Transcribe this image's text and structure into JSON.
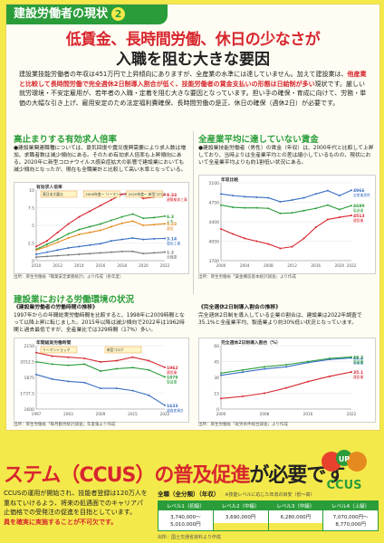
{
  "title_tag": {
    "text": "建設労働者の現状",
    "num": "2"
  },
  "headline": {
    "line1": "低賃金、長時間労働、休日の少なさが",
    "line2": "入職を阻む大きな要因"
  },
  "intro": {
    "p1": "建設業技能労働者の年収は451万円で上昇傾向にありますが、全産業の水準には達していません。加えて建設業は、",
    "p1_red": "他産業と比較して長時間労働で完全週休2日制導入割合が低く、技能労働者の賃金支払いの形態は日給制が多い",
    "p2": "現状です。厳しい就労環境・不安定雇用が、若年者の入職・定着を阻む大きな要因となっています。担い手の確保・育成に向けて、労務・単価の大幅な引き上げ、雇用安定のため法定福利費確保、長時間労働の是正、休日の確保（週休2日）が必要です。"
  },
  "panel1": {
    "heading": "高止まりする有効求人倍率",
    "text": "●建設業関連職種については、景気回復や震災復興需要により求人数は増加、求職者数は減少傾向にある。そのため有効求人倍率も上昇傾向にある。2020年に新型コロナウイルス感染症拡大の影響で建設業においても減少傾向となったが、現在も全職業計と比較して高い水準となっている。",
    "source": "出所：厚生労働省「職業安定業務統計」より作成（各年度）"
  },
  "panel2": {
    "heading": "全産業平均に達していない賃金",
    "text": "●建設業技能労働者（男性）の賃金（年収）は、2000年代と比較して上昇しており、当時よりは全産業平均との差は縮小しているものの、現状において全産業平均よりも約1割低い状況にある。",
    "source": "出所：厚生労働省「賃金構造基本統計調査」より作成"
  },
  "panel3": {
    "heading": "建設業における労働環境の状況",
    "sub": "《建設業労働者の労働時間の推移》",
    "text": "1997年からの年間総実労働時間を比較すると、1998年に2009時間となって以降上昇に転じました。2015年以降は減少傾向で2022年は1962時間と過去最低ですが、全産業比では329時間（17%）多い。",
    "source": "出所：厚生労働省「毎月勤労統計調査」年度報より作成"
  },
  "panel4": {
    "sub": "《完全週休2日制導入割合の推移》",
    "text": "完全週休2日制を導入している企業の割合は、建設業は2022年調査で35.1%と全産業平均、製造業より約30%低い状況となっています。",
    "source": "出所：厚生労働省「就労条件総合調査」より作成"
  },
  "bottom": {
    "title_red1": "ステム（CCUS）の",
    "title_red2": "普及促進",
    "title_black": "が必要です",
    "logo_text": "CCUS",
    "logo_up": "UP",
    "text1": "CCUSの運用が開始され、技能者登録は120万人を",
    "text2": "重ねていけるよう、将来の処遇面でのキャリアパ",
    "text3": "止価格での受発注の促進を目指としています。",
    "text_red": "員を確実に実施することが不可欠です。",
    "table_head": "全職（全分類）（年収）",
    "table_note": "※技能レベルに応じた年収の目安（低〜高）",
    "levels": [
      {
        "name": "レベル1",
        "sub": "（初級）",
        "range": "3,740,000〜5,010,000円"
      },
      {
        "name": "レベル2",
        "sub": "（中級）",
        "range": "3,690,000円"
      },
      {
        "name": "レベル3",
        "sub": "（中級）",
        "range": "6,280,000円"
      },
      {
        "name": "レベル4",
        "sub": "（上級）",
        "range": "7,070,000円〜8,770,000円"
      }
    ],
    "footnote": "出所：国土交通省資料より作成"
  },
  "chart_data": [
    {
      "type": "line",
      "title": "有効求人倍率",
      "ylim": [
        0,
        10
      ],
      "x": [
        "2010",
        "2011",
        "2012",
        "2013",
        "2014",
        "2015",
        "2016",
        "2017",
        "2018",
        "2019",
        "2020",
        "2021",
        "2022"
      ],
      "series": [
        {
          "name": "建築躯体工事",
          "color": "#d7262e",
          "values": [
            2.0,
            2.8,
            4.0,
            5.2,
            6.2,
            7.0,
            7.8,
            8.6,
            9.4,
            9.6,
            8.8,
            9.0,
            9.33
          ]
        },
        {
          "name": "土木",
          "color": "#2a9d3a",
          "values": [
            1.6,
            2.3,
            3.0,
            3.8,
            4.4,
            4.8,
            5.2,
            5.7,
            6.2,
            6.6,
            6.0,
            6.1,
            6.3
          ]
        },
        {
          "name": "建設",
          "color": "#e58a1f",
          "values": [
            1.5,
            2.0,
            2.6,
            3.2,
            3.7,
            4.0,
            4.3,
            4.8,
            5.3,
            5.6,
            5.0,
            5.1,
            5.23
          ]
        },
        {
          "name": "電気工事",
          "color": "#3a6fc4",
          "values": [
            0.9,
            1.2,
            1.5,
            1.8,
            2.0,
            2.2,
            2.4,
            2.8,
            3.0,
            3.2,
            3.0,
            3.1,
            3.14
          ]
        },
        {
          "name": "全職業",
          "color": "#777777",
          "values": [
            0.5,
            0.6,
            0.7,
            0.8,
            0.9,
            1.0,
            1.1,
            1.2,
            1.3,
            1.3,
            1.0,
            1.1,
            1.2
          ]
        }
      ],
      "annotations": [
        "東日本大震災",
        "2008年度〜 リーマンショック",
        "2020年度〜 新型コロナ"
      ]
    },
    {
      "type": "line",
      "title": "年収比較",
      "ylim": [
        3700,
        5100
      ],
      "x": [
        "2000",
        "2002",
        "2004",
        "2006",
        "2008",
        "2010",
        "2012",
        "2014",
        "2016",
        "2018",
        "2020",
        "2022"
      ],
      "series": [
        {
          "name": "全産業男性",
          "color": "#3a6fc4",
          "values": [
            4900,
            4870,
            4850,
            4840,
            4830,
            4760,
            4790,
            4830,
            4900,
            4960,
            4870,
            4966
          ]
        },
        {
          "name": "製造業",
          "color": "#2a9d3a",
          "values": [
            4700,
            4660,
            4650,
            4650,
            4640,
            4550,
            4560,
            4600,
            4640,
            4700,
            4620,
            4689
          ]
        },
        {
          "name": "建設業",
          "color": "#d7262e",
          "values": [
            4270,
            4180,
            4100,
            4050,
            4000,
            3920,
            3950,
            4100,
            4300,
            4440,
            4480,
            4513
          ]
        }
      ]
    },
    {
      "type": "line",
      "title": "年間総実労働時間",
      "ylim": [
        1600,
        2150
      ],
      "x": [
        "1997",
        "2000",
        "2003",
        "2006",
        "2009",
        "2012",
        "2015",
        "2018",
        "2022"
      ],
      "series": [
        {
          "name": "建設業",
          "color": "#d7262e",
          "values": [
            2090,
            2060,
            2050,
            2040,
            2009,
            2020,
            2050,
            2020,
            1962
          ]
        },
        {
          "name": "製造業",
          "color": "#2a9d3a",
          "values": [
            2010,
            1990,
            1980,
            1990,
            1930,
            1950,
            1960,
            1940,
            1879
          ]
        },
        {
          "name": "調査産業計",
          "color": "#3a6fc4",
          "values": [
            1900,
            1860,
            1840,
            1830,
            1780,
            1780,
            1760,
            1720,
            1633
          ]
        }
      ],
      "annotations": [
        "リーマンショック",
        "新型コロナ"
      ]
    },
    {
      "type": "line",
      "title": "完全週休2日制導入割合（%）",
      "ylim": [
        0,
        60
      ],
      "x": [
        "2000",
        "2004",
        "2008",
        "2012",
        "2016",
        "2020",
        "2022"
      ],
      "series": [
        {
          "name": "全産業",
          "color": "#3a6fc4",
          "values": [
            32,
            35,
            38,
            40,
            44,
            47,
            48.4
          ]
        },
        {
          "name": "製造業",
          "color": "#2a9d3a",
          "values": [
            34,
            37,
            40,
            42,
            45,
            48,
            49.3
          ]
        },
        {
          "name": "建設業",
          "color": "#d7262e",
          "values": [
            10,
            12,
            15,
            20,
            26,
            31,
            35.1
          ]
        }
      ]
    }
  ]
}
